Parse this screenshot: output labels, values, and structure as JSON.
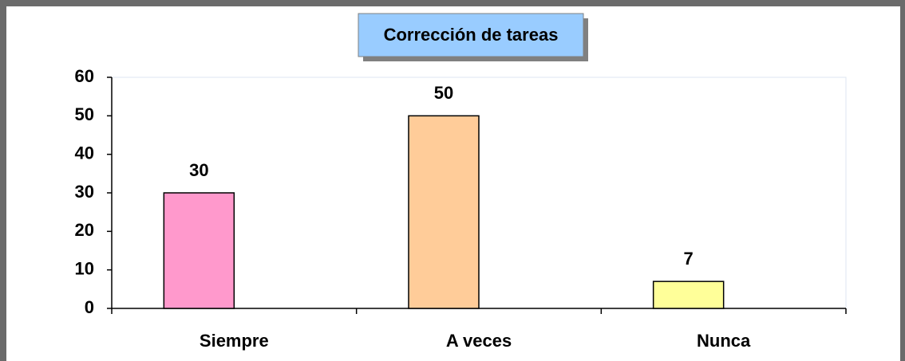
{
  "chart_data": {
    "type": "bar",
    "title": "Corrección de tareas",
    "categories": [
      "Siempre",
      "A veces",
      "Nunca"
    ],
    "values": [
      30,
      50,
      7
    ],
    "colors": [
      "#ff99cc",
      "#ffcc99",
      "#ffff99"
    ],
    "ylim": [
      0,
      60
    ],
    "yticks": [
      0,
      10,
      20,
      30,
      40,
      50,
      60
    ],
    "grid": false
  }
}
